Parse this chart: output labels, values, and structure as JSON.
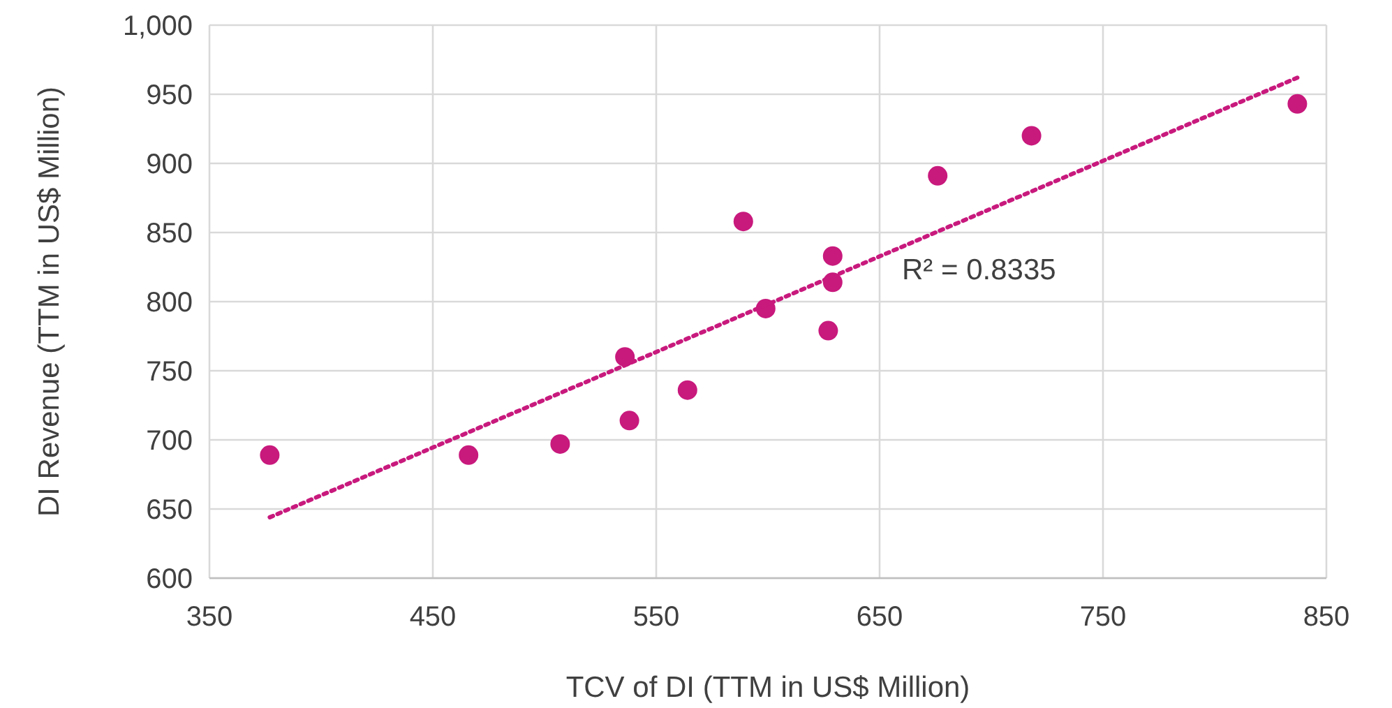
{
  "chart_data": {
    "type": "scatter",
    "xlabel": "TCV of DI (TTM in US$ Million)",
    "ylabel": "DI Revenue (TTM in US$ Million)",
    "xlim": [
      350,
      850
    ],
    "xticks": [
      350,
      450,
      550,
      650,
      750,
      850
    ],
    "ylim": [
      600,
      1000
    ],
    "yticks": [
      600,
      650,
      700,
      750,
      800,
      850,
      900,
      950,
      {
        "value": 1000,
        "label": "1,000"
      }
    ],
    "grid": true,
    "series": [
      {
        "color": "#c8197d",
        "marker": "circle",
        "x": [
          377,
          466,
          507,
          536,
          538,
          564,
          589,
          599,
          629,
          629,
          627,
          676,
          718,
          837
        ],
        "values": [
          689,
          689,
          697,
          760,
          714,
          736,
          858,
          795,
          833,
          814,
          779,
          891,
          920,
          943
        ]
      },
      {
        "type": "line",
        "color": "#c8197d",
        "marker": "none",
        "line_style": "dotted",
        "x": [
          377,
          837
        ],
        "values": [
          644,
          962
        ]
      }
    ],
    "annotations": [
      "R² = 0.8335"
    ]
  }
}
